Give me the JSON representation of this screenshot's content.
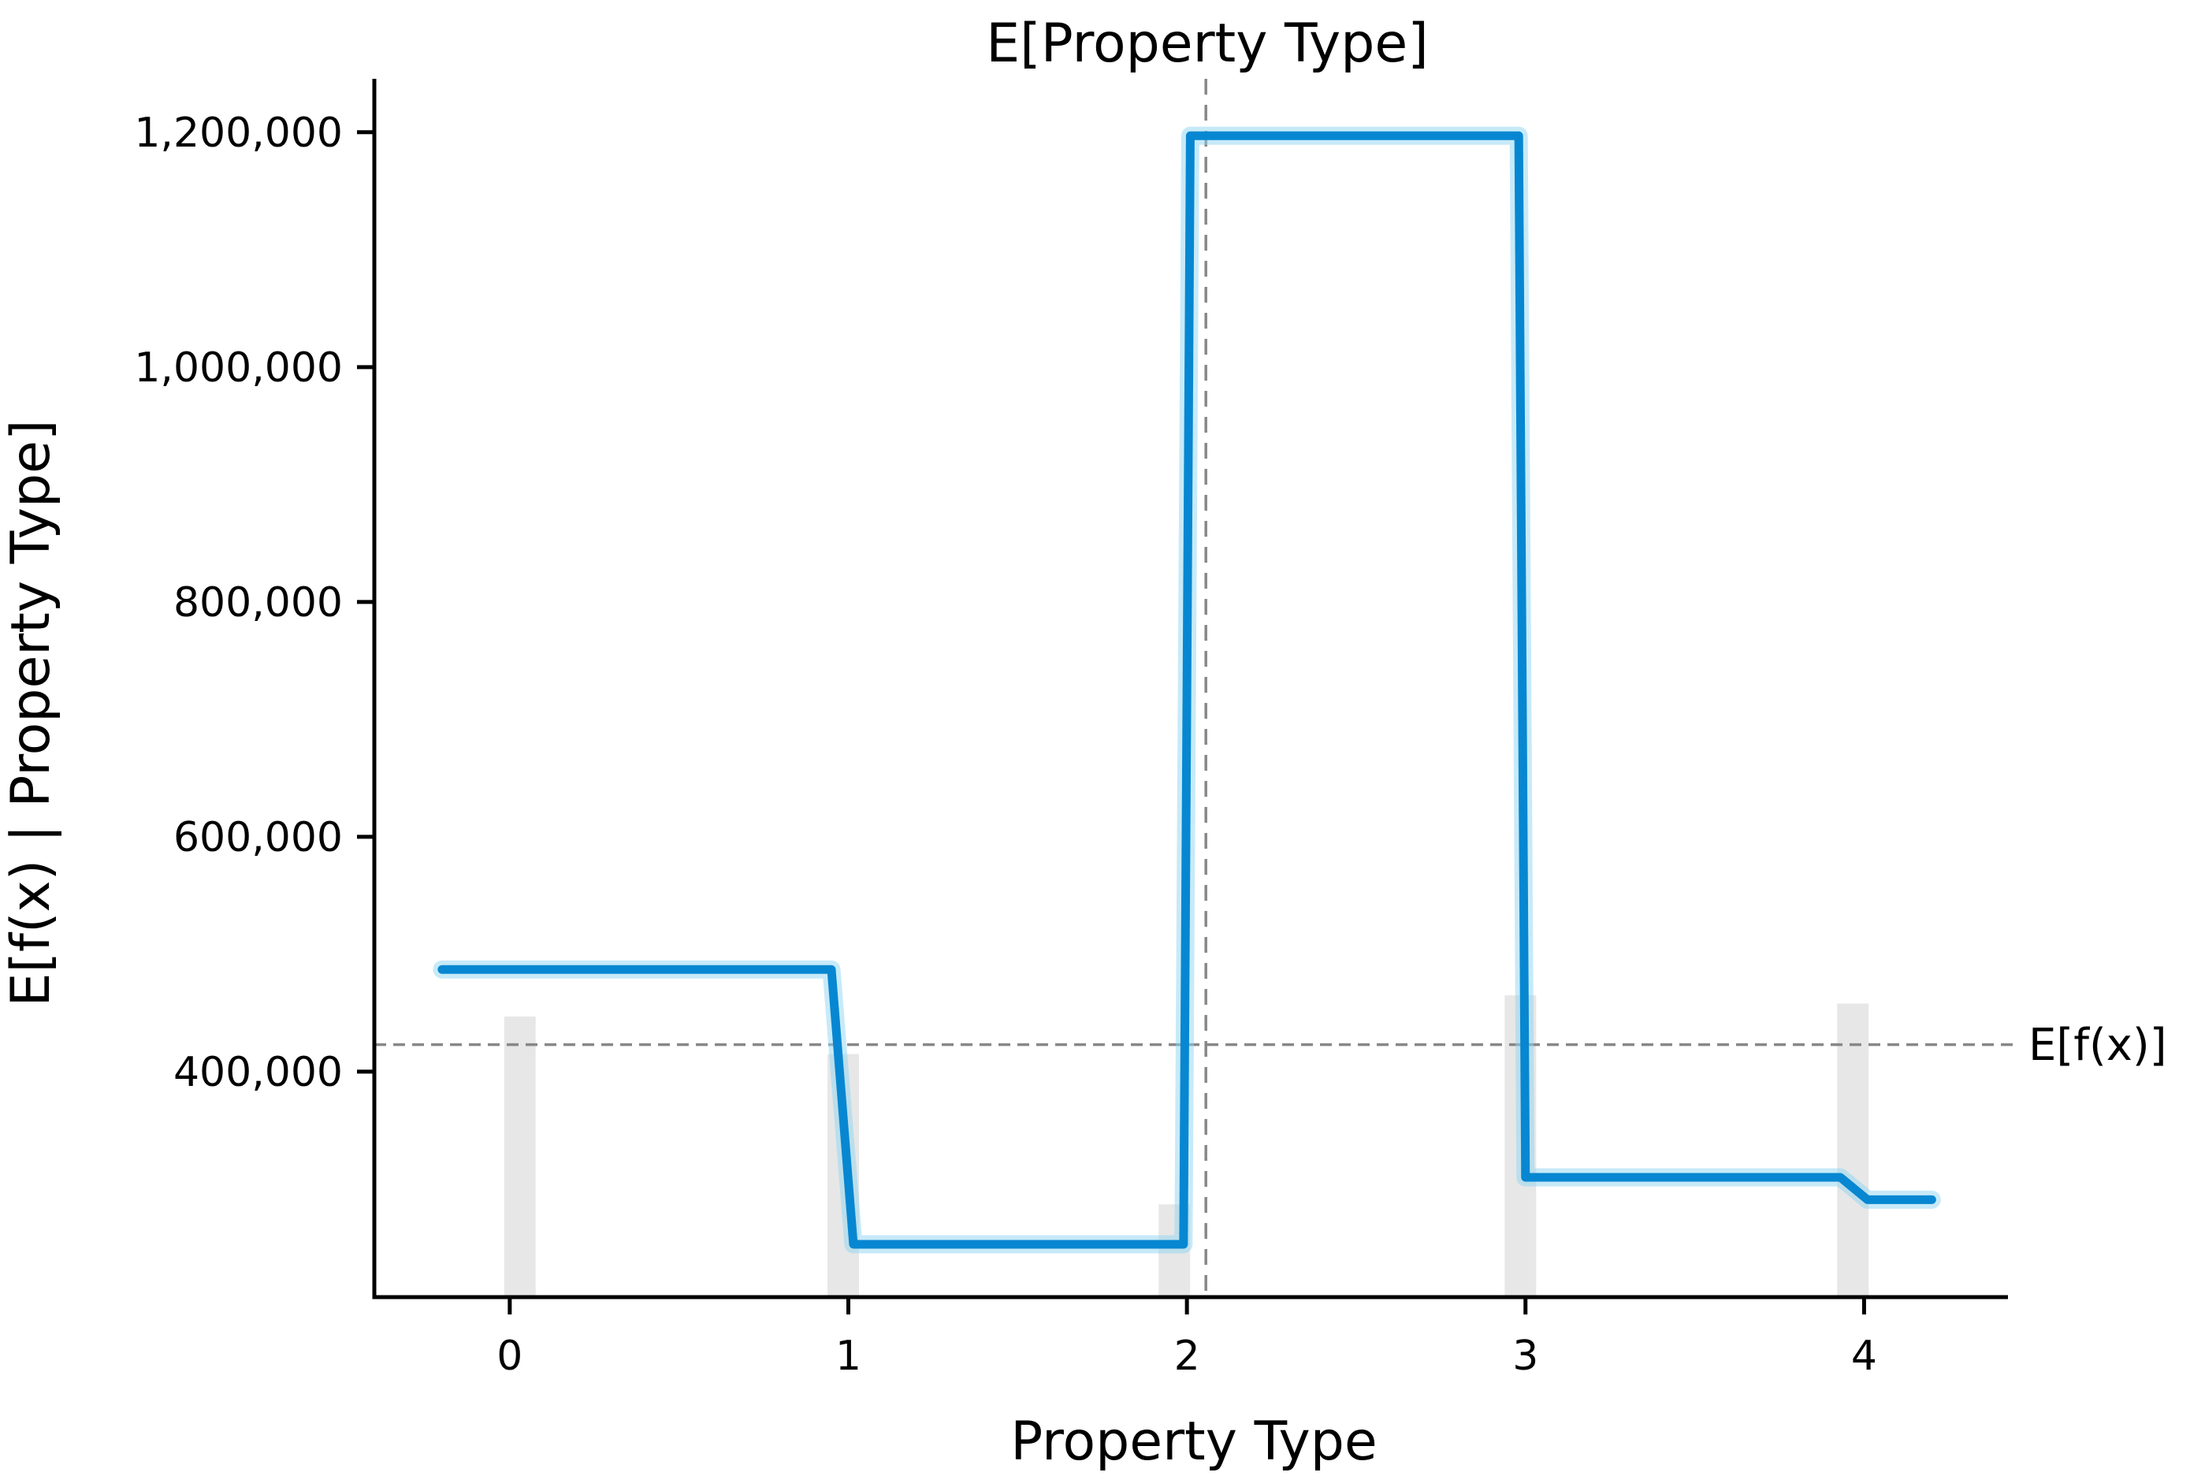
{
  "chart": {
    "title": "E[Property Type]",
    "xlabel": "Property Type",
    "ylabel": "E[f(x) | Property Type]",
    "expectation_label": "E[f(x)]"
  },
  "chart_data": {
    "type": "line",
    "title": "E[Property Type]",
    "xlabel": "Property Type",
    "ylabel": "E[f(x) | Property Type]",
    "xlim": [
      -0.4,
      4.425
    ],
    "ylim": [
      208000,
      1245500
    ],
    "grid": false,
    "x_axis": {
      "tick_values": [
        0,
        1,
        2,
        3,
        4
      ],
      "tick_labels": [
        "0",
        "1",
        "2",
        "3",
        "4"
      ]
    },
    "y_axis": {
      "tick_values": [
        400000,
        600000,
        800000,
        1000000,
        1200000
      ],
      "tick_labels": [
        "400,000",
        "600,000",
        "800,000",
        "1,000,000",
        "1,200,000"
      ]
    },
    "series": [
      {
        "name": "E[f(x) | Property Type]",
        "x": [
          -0.2,
          0.95,
          1.015,
          1.99,
          2.01,
          2.98,
          3.0,
          3.93,
          4.01,
          4.2
        ],
        "y": [
          487000,
          487000,
          253000,
          253000,
          1197000,
          1197000,
          310000,
          310000,
          291000,
          291000
        ]
      }
    ],
    "histogram": {
      "centers": [
        0.03,
        0.985,
        1.963,
        2.985,
        3.967
      ],
      "tops": [
        447000,
        415000,
        287000,
        465000,
        458000
      ],
      "base": 208000,
      "bar_width": 0.093
    },
    "expected_value": 423000,
    "expected_value_label": "E[f(x)]",
    "expected_feature_value": 2.056,
    "expected_feature_label": "E[Property Type]",
    "colors": {
      "line": "#0787d1",
      "line_halo": "#8fd6f2",
      "histogram": "#e7e7e7",
      "dashed": "#878787",
      "axis": "#000000",
      "background": "#ffffff"
    }
  }
}
